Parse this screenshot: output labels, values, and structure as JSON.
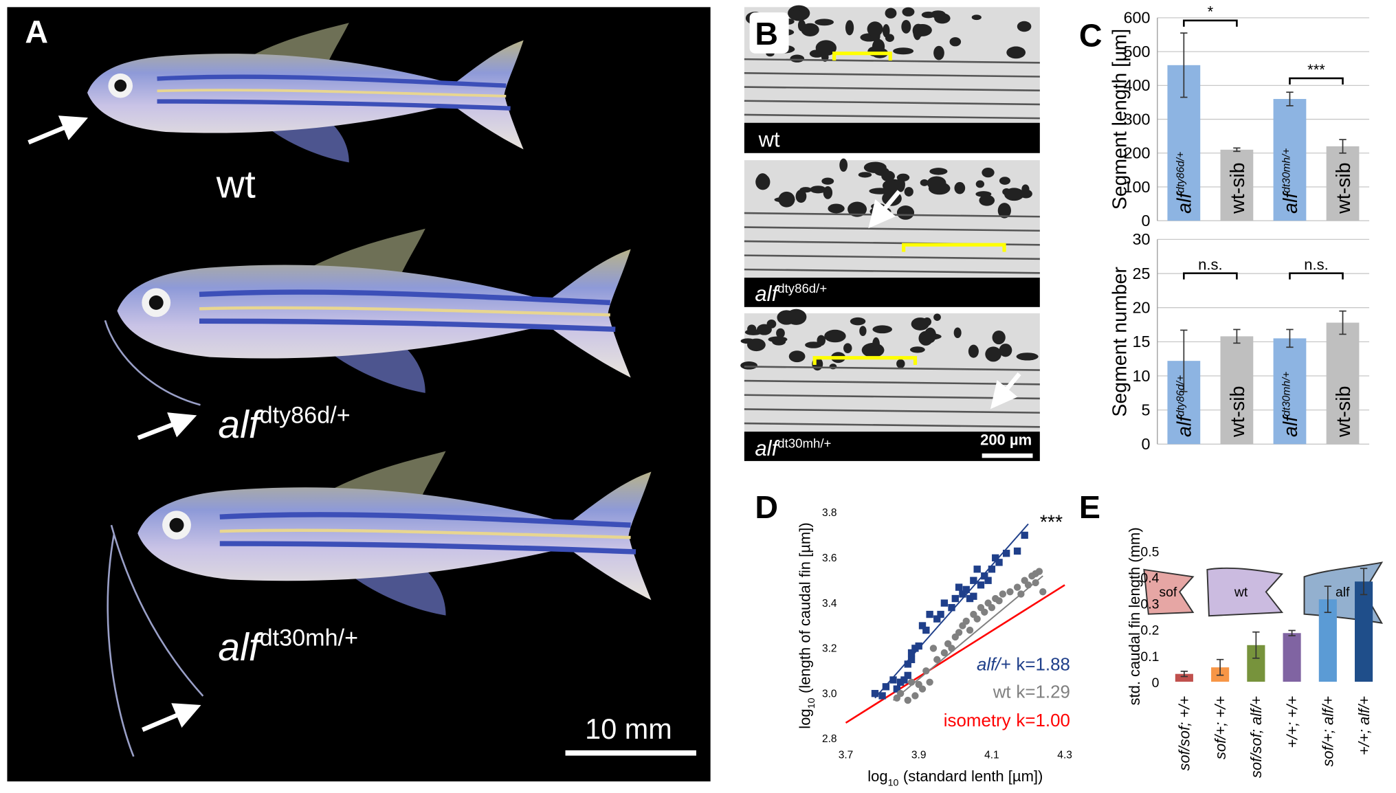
{
  "panel_labels": [
    "A",
    "B",
    "C",
    "D",
    "E"
  ],
  "panel_a": {
    "fish": [
      {
        "name": "wt"
      },
      {
        "name": "alf",
        "sup": "dty86d/+"
      },
      {
        "name": "alf",
        "sup": "dt30mh/+"
      }
    ],
    "scale_bar": "10 mm"
  },
  "panel_b": {
    "images": [
      {
        "name": "wt"
      },
      {
        "name": "alf",
        "sup": "dty86d/+"
      },
      {
        "name": "alf",
        "sup": "dt30mh/+"
      }
    ],
    "scale_bar": "200 µm"
  },
  "panel_e_shapes": [
    "sof",
    "wt",
    "alf"
  ],
  "chart_data": [
    {
      "type": "bar",
      "ylabel": "Segment length [µm]",
      "categories": [
        "alf",
        "wt-sib",
        "alf",
        "wt-sib"
      ],
      "category_superscripts": [
        "dty86d/+",
        null,
        "dt30mh/+",
        null
      ],
      "values": [
        460,
        210,
        360,
        220
      ],
      "errors": [
        95,
        5,
        20,
        20
      ],
      "colors": [
        "#8db4e2",
        "#bfbfbf",
        "#8db4e2",
        "#bfbfbf"
      ],
      "ylim": [
        0,
        600
      ],
      "yticks": [
        0,
        100,
        200,
        300,
        400,
        500,
        600
      ],
      "grid": true,
      "annotations": [
        "*",
        "***"
      ]
    },
    {
      "type": "bar",
      "ylabel": "Segment number",
      "categories": [
        "alf",
        "wt-sib",
        "alf",
        "wt-sib"
      ],
      "category_superscripts": [
        "dty86d/+",
        null,
        "dt30mh/+",
        null
      ],
      "values": [
        12.2,
        15.8,
        15.5,
        17.8
      ],
      "errors": [
        4.5,
        1,
        1.3,
        1.7
      ],
      "colors": [
        "#8db4e2",
        "#bfbfbf",
        "#8db4e2",
        "#bfbfbf"
      ],
      "ylim": [
        0,
        30
      ],
      "yticks": [
        0,
        5,
        10,
        15,
        20,
        25,
        30
      ],
      "grid": true,
      "annotations": [
        "n.s.",
        "n.s."
      ]
    },
    {
      "type": "scatter",
      "xlabel_parts": [
        "log",
        "10",
        "(standard lenth [µm])"
      ],
      "ylabel_parts": [
        "log",
        "10",
        "(length of caudal fin [µm])"
      ],
      "xlim": [
        3.7,
        4.3
      ],
      "xticks": [
        3.7,
        3.9,
        4.1,
        4.3
      ],
      "ylim": [
        2.8,
        3.8
      ],
      "yticks": [
        {
          "value": 2.8,
          "label": "2.8"
        },
        {
          "value": 3,
          "label": "3.0"
        },
        3.2,
        3.4,
        3.6,
        3.8
      ],
      "annotation": "***",
      "series": [
        {
          "name": "alf/+",
          "slope_label": "k=1.88",
          "color": "#1f3f8a",
          "marker": "square",
          "x": [
            3.78,
            3.8,
            3.81,
            3.83,
            3.84,
            3.85,
            3.86,
            3.87,
            3.87,
            3.88,
            3.88,
            3.89,
            3.9,
            3.91,
            3.92,
            3.93,
            3.95,
            3.96,
            3.97,
            3.99,
            4.0,
            4.01,
            4.02,
            4.03,
            4.04,
            4.05,
            4.05,
            4.06,
            4.07,
            4.08,
            4.09,
            4.1,
            4.11,
            4.12,
            4.14,
            4.17,
            4.19
          ],
          "values": [
            3.0,
            2.99,
            3.03,
            3.06,
            3.02,
            3.05,
            3.06,
            3.08,
            3.13,
            3.15,
            3.18,
            3.2,
            3.21,
            3.3,
            3.28,
            3.35,
            3.33,
            3.35,
            3.4,
            3.38,
            3.42,
            3.47,
            3.44,
            3.46,
            3.42,
            3.43,
            3.5,
            3.55,
            3.48,
            3.52,
            3.5,
            3.55,
            3.6,
            3.58,
            3.62,
            3.63,
            3.7
          ],
          "fit_x": [
            3.78,
            4.2
          ],
          "fit_y": [
            2.98,
            3.75
          ]
        },
        {
          "name": "wt",
          "slope_label": "k=1.29",
          "color": "#808080",
          "marker": "circle",
          "x": [
            3.84,
            3.85,
            3.87,
            3.88,
            3.89,
            3.9,
            3.91,
            3.92,
            3.93,
            3.94,
            3.95,
            3.97,
            3.98,
            3.99,
            4.0,
            4.01,
            4.02,
            4.03,
            4.04,
            4.05,
            4.06,
            4.07,
            4.08,
            4.09,
            4.1,
            4.11,
            4.12,
            4.13,
            4.15,
            4.17,
            4.18,
            4.19,
            4.2,
            4.21,
            4.22,
            4.23,
            4.22,
            4.24
          ],
          "values": [
            2.98,
            3.0,
            2.97,
            3.05,
            2.99,
            3.04,
            3.02,
            3.1,
            3.05,
            3.2,
            3.15,
            3.18,
            3.22,
            3.2,
            3.25,
            3.27,
            3.3,
            3.32,
            3.28,
            3.35,
            3.33,
            3.38,
            3.36,
            3.4,
            3.38,
            3.42,
            3.41,
            3.44,
            3.45,
            3.47,
            3.44,
            3.5,
            3.48,
            3.52,
            3.53,
            3.54,
            3.49,
            3.45
          ],
          "fit_x": [
            3.83,
            4.24
          ],
          "fit_y": [
            2.97,
            3.52
          ]
        }
      ],
      "reference_line": {
        "name": "isometry",
        "slope_label": "k=1.00",
        "color": "#ff0000",
        "x": [
          3.7,
          4.3
        ],
        "y": [
          2.87,
          3.48
        ]
      }
    },
    {
      "type": "bar",
      "ylabel": "std. caudal fin length (mm)",
      "categories": [
        "sof/sof; +/+",
        "sof/+; +/+",
        "sof/sof; alf/+",
        "+/+; +/+",
        "sof/+; alf/+",
        "+/+; alf/+"
      ],
      "values": [
        0.03,
        0.055,
        0.14,
        0.186,
        0.315,
        0.383
      ],
      "errors": [
        0.01,
        0.03,
        0.05,
        0.01,
        0.05,
        0.05
      ],
      "colors": [
        "#c0504d",
        "#f79646",
        "#77933c",
        "#8064a2",
        "#5b9bd5",
        "#1f4e8a"
      ],
      "ylim": [
        0,
        0.5
      ],
      "yticks": [
        0,
        0.1,
        0.2,
        0.3,
        0.4,
        0.5
      ]
    }
  ]
}
